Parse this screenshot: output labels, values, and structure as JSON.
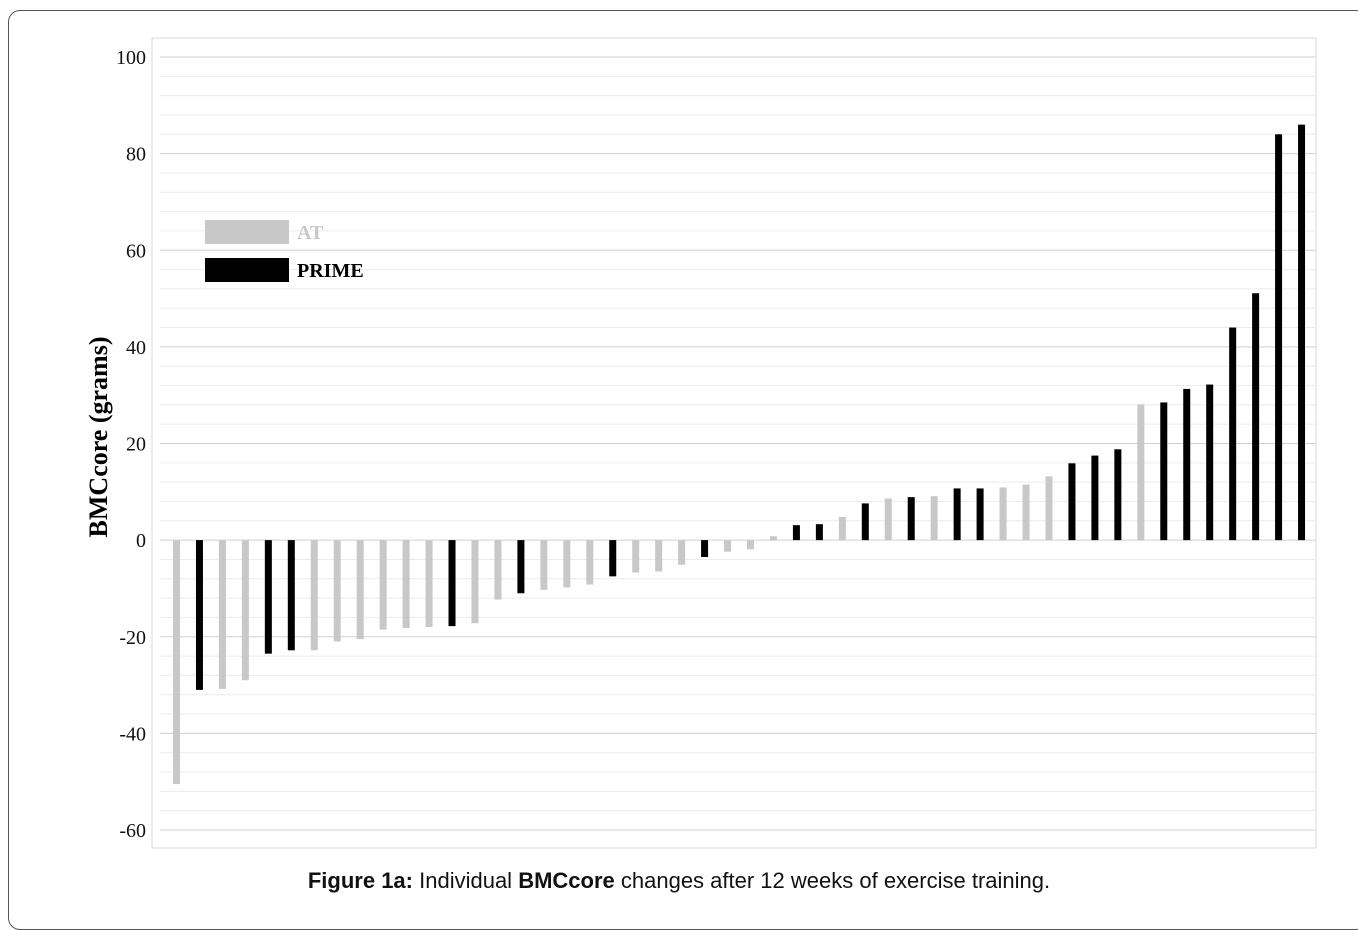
{
  "caption": {
    "prefix": "Figure 1a:",
    "pre": " Individual ",
    "bold": "BMCcore",
    "post": " changes after 12 weeks of exercise training."
  },
  "chart_data": {
    "type": "bar",
    "ylabel": "BMCcore (grams)",
    "xlabel": "",
    "ylim": [
      -60,
      100
    ],
    "yticks": [
      100,
      80,
      60,
      40,
      20,
      0,
      -20,
      -40,
      -60
    ],
    "grid": true,
    "legend_position": "top-left",
    "series": [
      {
        "name": "AT",
        "color": "#c8c8c8"
      },
      {
        "name": "PRIME",
        "color": "#000000"
      }
    ],
    "values": [
      -50.5,
      -31,
      -30.8,
      -29,
      -23.5,
      -22.8,
      -22.8,
      -21,
      -20.5,
      -18.5,
      -18.2,
      -18,
      -17.8,
      -17.2,
      -12.3,
      -11,
      -10.3,
      -9.8,
      -9.2,
      -7.5,
      -6.7,
      -6.5,
      -5.1,
      -3.5,
      -2.4,
      -1.9,
      0.8,
      3.1,
      3.3,
      4.8,
      7.6,
      8.6,
      8.9,
      9.1,
      10.7,
      10.7,
      10.9,
      11.5,
      13.2,
      15.9,
      17.5,
      18.8,
      28.1,
      28.5,
      31.3,
      32.2,
      44,
      51.1,
      84,
      86
    ],
    "groups": [
      "AT",
      "PRIME",
      "AT",
      "AT",
      "PRIME",
      "PRIME",
      "AT",
      "AT",
      "AT",
      "AT",
      "AT",
      "AT",
      "PRIME",
      "AT",
      "AT",
      "PRIME",
      "AT",
      "AT",
      "AT",
      "PRIME",
      "AT",
      "AT",
      "AT",
      "PRIME",
      "AT",
      "AT",
      "AT",
      "PRIME",
      "PRIME",
      "AT",
      "PRIME",
      "AT",
      "PRIME",
      "AT",
      "PRIME",
      "PRIME",
      "AT",
      "AT",
      "AT",
      "PRIME",
      "PRIME",
      "PRIME",
      "AT",
      "PRIME",
      "PRIME",
      "PRIME",
      "PRIME",
      "PRIME",
      "PRIME",
      "PRIME"
    ]
  }
}
